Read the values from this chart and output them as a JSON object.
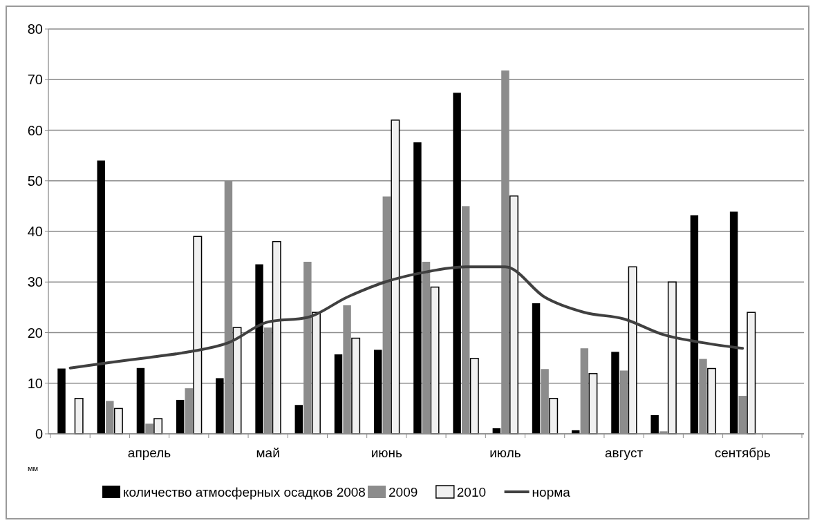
{
  "chart_data": {
    "type": "bar",
    "ylabel": "мм",
    "categories": [
      null,
      null,
      "апрель",
      null,
      null,
      "май",
      null,
      null,
      "июнь",
      null,
      null,
      "июль",
      null,
      null,
      "август",
      null,
      null,
      "сентябрь",
      null
    ],
    "series": [
      {
        "name": "количество атмосферных осадков 2008",
        "color": "#000000",
        "values": [
          12.9,
          54,
          13,
          6.7,
          11,
          33.5,
          5.7,
          15.7,
          16.6,
          57.6,
          67.4,
          1.1,
          25.8,
          0.7,
          16.2,
          3.7,
          43.2,
          43.9,
          null
        ]
      },
      {
        "name": "2009",
        "color": "#8c8c8c",
        "values": [
          0,
          6.5,
          2,
          9,
          50,
          21,
          34,
          25.4,
          46.9,
          34,
          45,
          71.8,
          12.8,
          16.9,
          12.5,
          0.5,
          14.8,
          7.5,
          null
        ]
      },
      {
        "name": "2010",
        "color": "#f0f0f0",
        "values": [
          7,
          5,
          3,
          39,
          21,
          38,
          24,
          18.9,
          62,
          29,
          14.9,
          47,
          7,
          11.9,
          33,
          30,
          12.9,
          24,
          null
        ]
      },
      {
        "name": "норма",
        "type": "line",
        "color": "#404040",
        "values": [
          13,
          14.1,
          15.1,
          16.2,
          18,
          22.1,
          23,
          27,
          30.1,
          32,
          33,
          33,
          27,
          24,
          22.7,
          19.6,
          18,
          16.9,
          null
        ]
      }
    ],
    "ylim": [
      0,
      80
    ],
    "yticks": [
      0,
      10,
      20,
      30,
      40,
      50,
      60,
      70,
      80
    ],
    "grid": "y",
    "legend": "bottom",
    "marker": "none"
  }
}
